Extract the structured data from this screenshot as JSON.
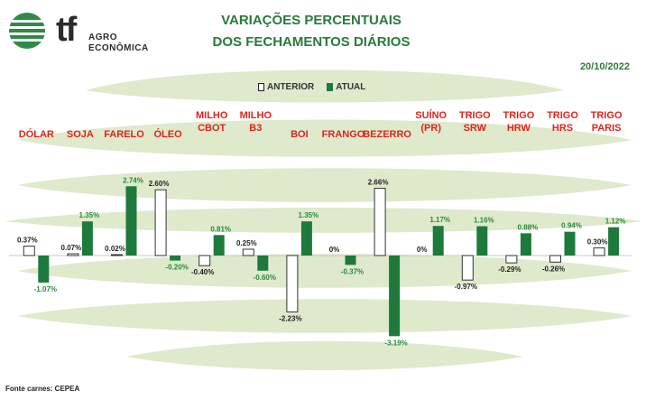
{
  "header": {
    "logo_mark": "tf",
    "logo_line1": "AGRO",
    "logo_line2": "ECONÔMICA",
    "title_line1": "VARIAÇÕES PERCENTUAIS",
    "title_line2": "DOS FECHAMENTOS DIÁRIOS",
    "date": "20/10/2022"
  },
  "legend": {
    "anterior": "ANTERIOR",
    "atual": "ATUAL"
  },
  "footer": {
    "source": "Fonte carnes: CEPEA"
  },
  "colors": {
    "title_green": "#2a7a3a",
    "label_red": "#e2231a",
    "bar_green": "#1e7a3c",
    "value_green": "#2a8a3a",
    "stripe_green": "#dfe9cc"
  },
  "chart_data": {
    "type": "bar",
    "categories": [
      [
        "DÓLAR"
      ],
      [
        "SOJA"
      ],
      [
        "FARELO"
      ],
      [
        "ÓLEO"
      ],
      [
        "MILHO",
        "CBOT"
      ],
      [
        "MILHO",
        "B3"
      ],
      [
        "BOI"
      ],
      [
        "FRANGO"
      ],
      [
        "BEZERRO"
      ],
      [
        "SUÍNO",
        "(PR)"
      ],
      [
        "TRIGO",
        "SRW"
      ],
      [
        "TRIGO",
        "HRW"
      ],
      [
        "TRIGO",
        "HRS"
      ],
      [
        "TRIGO",
        "PARIS"
      ]
    ],
    "series": [
      {
        "name": "ANTERIOR",
        "values": [
          0.37,
          0.07,
          0.02,
          2.6,
          -0.4,
          0.25,
          -2.23,
          0,
          2.66,
          0,
          -0.97,
          -0.29,
          -0.26,
          0.3
        ],
        "labels": [
          "0.37%",
          "0.07%",
          "0.02%",
          "2.60%",
          "-0.40%",
          "0.25%",
          "-2.23%",
          "0%",
          "2.66%",
          "0%",
          "-0.97%",
          "-0.29%",
          "-0.26%",
          "0.30%"
        ]
      },
      {
        "name": "ATUAL",
        "values": [
          -1.07,
          1.35,
          2.74,
          -0.2,
          0.81,
          -0.6,
          1.35,
          -0.37,
          -3.19,
          1.17,
          1.16,
          0.88,
          0.94,
          1.12
        ],
        "labels": [
          "-1.07%",
          "1.35%",
          "2.74%",
          "-0.20%",
          "0.81%",
          "-0.60%",
          "1.35%",
          "-0.37%",
          "-3.19%",
          "1.17%",
          "1.16%",
          "0.88%",
          "0.94%",
          "1.12%"
        ]
      }
    ],
    "unit": "%"
  }
}
